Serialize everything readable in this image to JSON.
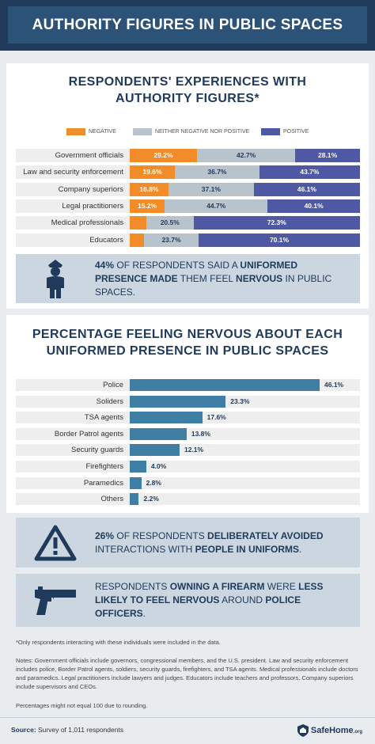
{
  "header": {
    "title": "AUTHORITY FIGURES IN PUBLIC SPACES"
  },
  "section1": {
    "title_line1": "RESPONDENTS' EXPERIENCES WITH",
    "title_line2": "AUTHORITY FIGURES*"
  },
  "legend": {
    "negative": "NEGATIVE",
    "neutral": "NEITHER NEGATIVE NOR POSITIVE",
    "positive": "POSITIVE"
  },
  "colors": {
    "negative": "#f28c28",
    "neutral": "#b9c3cc",
    "positive": "#4e58a3",
    "bar": "#3f7fa6",
    "navy": "#1f3a5a"
  },
  "chart_data": [
    {
      "type": "bar",
      "orientation": "horizontal-stacked",
      "title": "RESPONDENTS' EXPERIENCES WITH AUTHORITY FIGURES*",
      "categories": [
        "Government officials",
        "Law and security enforcement",
        "Company superiors",
        "Legal practitioners",
        "Medical professionals",
        "Educators"
      ],
      "series": [
        {
          "name": "NEGATIVE",
          "values": [
            29.2,
            19.6,
            16.8,
            15.2,
            7.2,
            6.2
          ],
          "labels": [
            "29.2%",
            "19.6%",
            "16.8%",
            "15.2%",
            "",
            ""
          ]
        },
        {
          "name": "NEITHER NEGATIVE NOR POSITIVE",
          "values": [
            42.7,
            36.7,
            37.1,
            44.7,
            20.5,
            23.7
          ],
          "labels": [
            "42.7%",
            "36.7%",
            "37.1%",
            "44.7%",
            "20.5%",
            "23.7%"
          ]
        },
        {
          "name": "POSITIVE",
          "values": [
            28.1,
            43.7,
            46.1,
            40.1,
            72.3,
            70.1
          ],
          "labels": [
            "28.1%",
            "43.7%",
            "46.1%",
            "40.1%",
            "72.3%",
            "70.1%"
          ]
        }
      ],
      "xlim": [
        0,
        100
      ],
      "legend_position": "top"
    },
    {
      "type": "bar",
      "orientation": "horizontal",
      "title": "PERCENTAGE FEELING NERVOUS ABOUT EACH UNIFORMED PRESENCE IN PUBLIC SPACES",
      "categories": [
        "Police",
        "Soliders",
        "TSA agents",
        "Border Patrol agents",
        "Security guards",
        "Firefighters",
        "Paramedics",
        "Others"
      ],
      "values": [
        46.1,
        23.3,
        17.6,
        13.8,
        12.1,
        4.0,
        2.8,
        2.2
      ],
      "labels": [
        "46.1%",
        "23.3%",
        "17.6%",
        "13.8%",
        "12.1%",
        "4.0%",
        "2.8%",
        "2.2%"
      ],
      "xlim": [
        0,
        46.1
      ]
    }
  ],
  "callout1": {
    "p1": "44%",
    "p2": " OF RESPONDENTS SAID A ",
    "p3": "UNIFORMED PRESENCE MADE",
    "p4": " THEM FEEL ",
    "p5": "NERVOUS",
    "p6": " IN PUBLIC SPACES."
  },
  "section2": {
    "title_line1": "PERCENTAGE FEELING NERVOUS ABOUT EACH",
    "title_line2": "UNIFORMED PRESENCE IN PUBLIC SPACES"
  },
  "callout2": {
    "p1": "26%",
    "p2": " OF RESPONDENTS ",
    "p3": "DELIBERATELY AVOIDED",
    "p4": " INTERACTIONS WITH ",
    "p5": "PEOPLE IN UNIFORMS",
    "p6": "."
  },
  "callout3": {
    "p1": "RESPONDENTS ",
    "p2": "OWNING A FIREARM",
    "p3": " WERE ",
    "p4": "LESS LIKELY TO FEEL NERVOUS",
    "p5": " AROUND ",
    "p6": "POLICE OFFICERS",
    "p7": "."
  },
  "notes": {
    "footnote": "*Only respondents interacting with these individuals were included in the data.",
    "notes": "Notes: Government officials include governors, congressional members, and the U.S. president. Law and security enforcement includes police, Border Patrol agents, soldiers, security guards, firefighters, and TSA agents. Medical professionals include doctors and paramedics. Legal practitioners include lawyers and judges. Educators include teachers and professors. Company superiors include supervisors and CEOs.",
    "rounding": "Percentages might not equal 100 due to rounding."
  },
  "footer": {
    "source_label": "Source:",
    "source_text": " Survey of 1,011 respondents",
    "brand": "SafeHome",
    "brand_suffix": ".org"
  },
  "icons": [
    "police-officer-icon",
    "warning-triangle-icon",
    "handgun-icon",
    "safehome-logo-icon"
  ]
}
